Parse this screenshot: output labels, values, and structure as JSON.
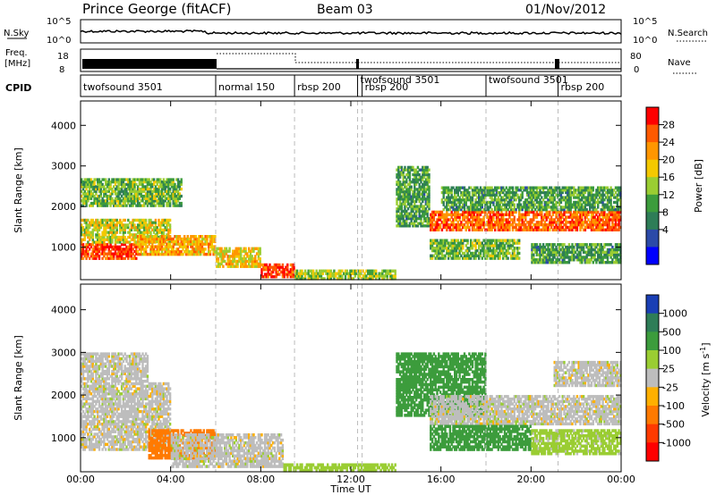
{
  "header": {
    "station": "Prince George (fitACF)",
    "beam": "Beam 03",
    "date": "01/Nov/2012"
  },
  "sky_panel": {
    "label": "N.Sky",
    "right_label": "N.Search",
    "ticks_left": [
      "10^5",
      "10^0"
    ],
    "ticks_right": [
      "10^5",
      "10^0"
    ]
  },
  "freq_panel": {
    "label_top": "Freq.",
    "label_bottom": "[MHz]",
    "right_label": "Nave",
    "ticks_left": [
      "18",
      "8"
    ],
    "ticks_right": [
      "80",
      "0"
    ]
  },
  "cpid_panel": {
    "label": "CPID",
    "modes": [
      {
        "name": "twofsound 3501",
        "start_hour": 0.0
      },
      {
        "name": "normal 150",
        "start_hour": 6.0
      },
      {
        "name": "rbsp 200",
        "start_hour": 9.5
      },
      {
        "name": "twofsound 3501",
        "start_hour": 12.3
      },
      {
        "name": "rbsp 200",
        "start_hour": 12.5
      },
      {
        "name": "twofsound 3501",
        "start_hour": 18.0
      },
      {
        "name": "rbsp 200",
        "start_hour": 21.2
      }
    ]
  },
  "time_axis": {
    "label": "Time UT",
    "ticks": [
      "00:00",
      "04:00",
      "08:00",
      "12:00",
      "16:00",
      "20:00",
      "00:00"
    ]
  },
  "power_colorbar": {
    "label": "Power [dB]",
    "ticks": [
      "28",
      "24",
      "20",
      "16",
      "12",
      "8",
      "4"
    ],
    "colors": [
      "#ff0000",
      "#ff5a00",
      "#ff9600",
      "#f4c800",
      "#9acd32",
      "#3c9c3c",
      "#2e7d57",
      "#2b4aa8",
      "#0000ff"
    ]
  },
  "velocity_colorbar": {
    "label": "Velocity [m s",
    "label_sup": "-1",
    "label_end": "]",
    "ticks": [
      "1000",
      "500",
      "100",
      "25",
      "-25",
      "-100",
      "-500",
      "-1000"
    ],
    "colors": [
      "#1a3fb5",
      "#2e7d57",
      "#3c9c3c",
      "#9acd32",
      "#bdbdbd",
      "#ffb000",
      "#ff7a00",
      "#ff3a00",
      "#ff0000"
    ]
  },
  "chart_data": [
    {
      "type": "heatmap",
      "title": "Power",
      "xlabel": "Time UT",
      "ylabel": "Slant Range [km]",
      "xlim": [
        0,
        24
      ],
      "ylim": [
        200,
        4600
      ],
      "yticks": [
        "1000",
        "2000",
        "3000",
        "4000"
      ],
      "colorbar": "Power [dB]",
      "bands": [
        {
          "start": 0.0,
          "end": 2.5,
          "range_low": 700,
          "range_high": 1100,
          "level": 26
        },
        {
          "start": 0.0,
          "end": 4.0,
          "range_low": 1100,
          "range_high": 1700,
          "level": 16
        },
        {
          "start": 0.0,
          "end": 4.5,
          "range_low": 2000,
          "range_high": 2700,
          "level": 12
        },
        {
          "start": 2.5,
          "end": 6.0,
          "range_low": 800,
          "range_high": 1300,
          "level": 20
        },
        {
          "start": 6.0,
          "end": 8.0,
          "range_low": 500,
          "range_high": 1000,
          "level": 18
        },
        {
          "start": 8.0,
          "end": 9.5,
          "range_low": 250,
          "range_high": 600,
          "level": 26
        },
        {
          "start": 9.5,
          "end": 14.0,
          "range_low": 200,
          "range_high": 450,
          "level": 14
        },
        {
          "start": 14.0,
          "end": 15.5,
          "range_low": 1500,
          "range_high": 3000,
          "level": 10
        },
        {
          "start": 15.5,
          "end": 24.0,
          "range_low": 1400,
          "range_high": 1900,
          "level": 24
        },
        {
          "start": 15.5,
          "end": 19.5,
          "range_low": 700,
          "range_high": 1200,
          "level": 12
        },
        {
          "start": 16.0,
          "end": 24.0,
          "range_low": 1900,
          "range_high": 2500,
          "level": 10
        },
        {
          "start": 20.0,
          "end": 24.0,
          "range_low": 600,
          "range_high": 1100,
          "level": 10
        }
      ]
    },
    {
      "type": "heatmap",
      "title": "Velocity",
      "xlabel": "Time UT",
      "ylabel": "Slant Range [km]",
      "xlim": [
        0,
        24
      ],
      "ylim": [
        200,
        4600
      ],
      "yticks": [
        "1000",
        "2000",
        "3000",
        "4000"
      ],
      "colorbar": "Velocity [m s-1]",
      "bands": [
        {
          "start": 0.0,
          "end": 4.0,
          "range_low": 700,
          "range_high": 2300,
          "level": 0
        },
        {
          "start": 0.0,
          "end": 3.0,
          "range_low": 2300,
          "range_high": 3000,
          "level": 0
        },
        {
          "start": 3.0,
          "end": 6.0,
          "range_low": 500,
          "range_high": 1200,
          "level": -300
        },
        {
          "start": 4.0,
          "end": 9.0,
          "range_low": 300,
          "range_high": 1100,
          "level": 0
        },
        {
          "start": 9.0,
          "end": 14.0,
          "range_low": 200,
          "range_high": 400,
          "level": 60
        },
        {
          "start": 14.0,
          "end": 18.0,
          "range_low": 1500,
          "range_high": 3000,
          "level": 200
        },
        {
          "start": 15.5,
          "end": 24.0,
          "range_low": 1300,
          "range_high": 2000,
          "level": 0
        },
        {
          "start": 15.5,
          "end": 20.0,
          "range_low": 700,
          "range_high": 1300,
          "level": 200
        },
        {
          "start": 20.0,
          "end": 24.0,
          "range_low": 600,
          "range_high": 1200,
          "level": 50
        },
        {
          "start": 21.0,
          "end": 24.0,
          "range_low": 2200,
          "range_high": 2800,
          "level": 0
        }
      ]
    }
  ]
}
